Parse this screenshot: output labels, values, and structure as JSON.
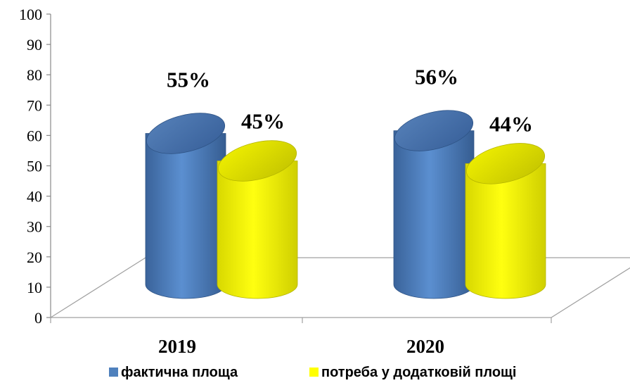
{
  "chart_data": {
    "type": "bar",
    "categories": [
      "2019",
      "2020"
    ],
    "series": [
      {
        "name": "фактична площа",
        "values": [
          55,
          56
        ],
        "labels": [
          "55%",
          "56%"
        ],
        "color": "#4f81bd"
      },
      {
        "name": "потреба у додатковій площі",
        "values": [
          45,
          44
        ],
        "labels": [
          "45%",
          "44%"
        ],
        "color": "#ffff00"
      }
    ],
    "ylim": [
      0,
      100
    ],
    "yticks": [
      0,
      10,
      20,
      30,
      40,
      50,
      60,
      70,
      80,
      90,
      100
    ],
    "grid": false,
    "legend": "bottom",
    "style": "3d-cylinder"
  }
}
